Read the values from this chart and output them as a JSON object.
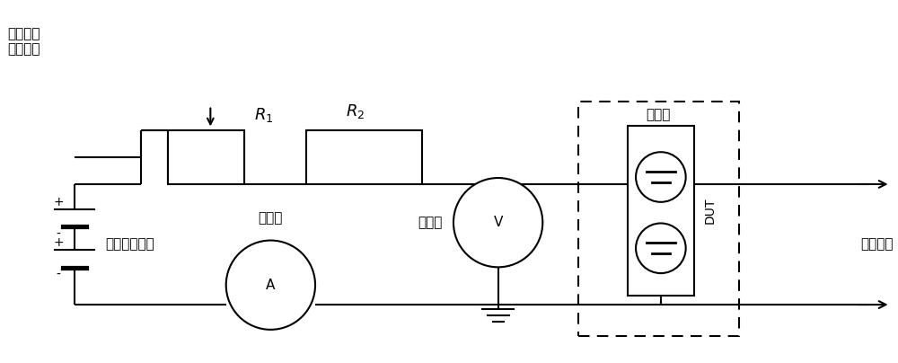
{
  "bg_color": "#ffffff",
  "line_color": "#000000",
  "fig_width": 10.0,
  "fig_height": 4.04,
  "dpi": 100,
  "label_forward_bias": "正向偏压\n噪声测试",
  "label_low_noise": "低噪声电压源",
  "label_ammeter": "电流表",
  "label_voltmeter": "电压表",
  "label_light_shield": "光屏蔽",
  "label_dut": "DUT",
  "label_to_amp": "至放大器",
  "label_R1": "$R_1$",
  "label_R2": "$R_2$",
  "label_V": "V",
  "label_A": "A"
}
